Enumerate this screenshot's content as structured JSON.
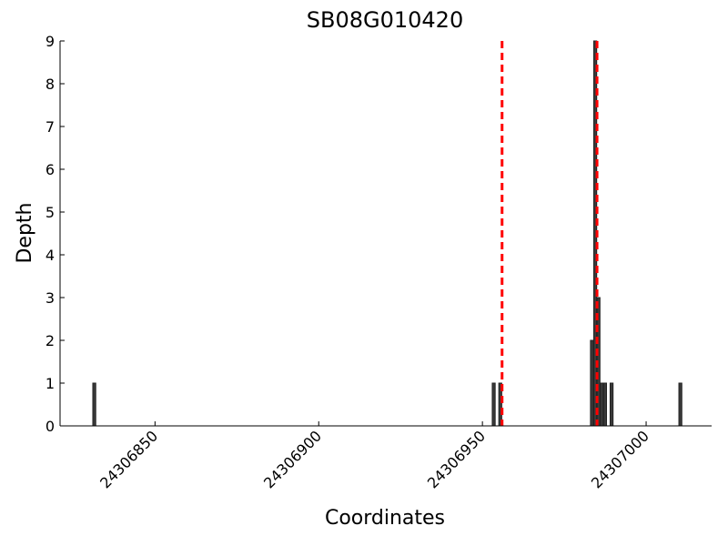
{
  "chart_data": {
    "type": "bar",
    "title": "SB08G010420",
    "x_label": "Coordinates",
    "y_label": "Depth",
    "x": [
      24306831,
      24306953,
      24306955,
      24306983,
      24306984,
      24306985,
      24306986,
      24306987,
      24306989,
      24307010
    ],
    "values": [
      1,
      1,
      1,
      2,
      9,
      3,
      1,
      1,
      1,
      1
    ],
    "color": "#3a3a3a",
    "vlines": [
      24306956,
      24306985
    ],
    "vline_color": "#ff0000",
    "xlim": [
      24306821,
      24307020
    ],
    "xticks": [
      24306850,
      24306900,
      24306950,
      24307000
    ],
    "ylim": [
      0,
      9
    ],
    "yticks": [
      0,
      1,
      2,
      3,
      4,
      5,
      6,
      7,
      8,
      9
    ]
  }
}
